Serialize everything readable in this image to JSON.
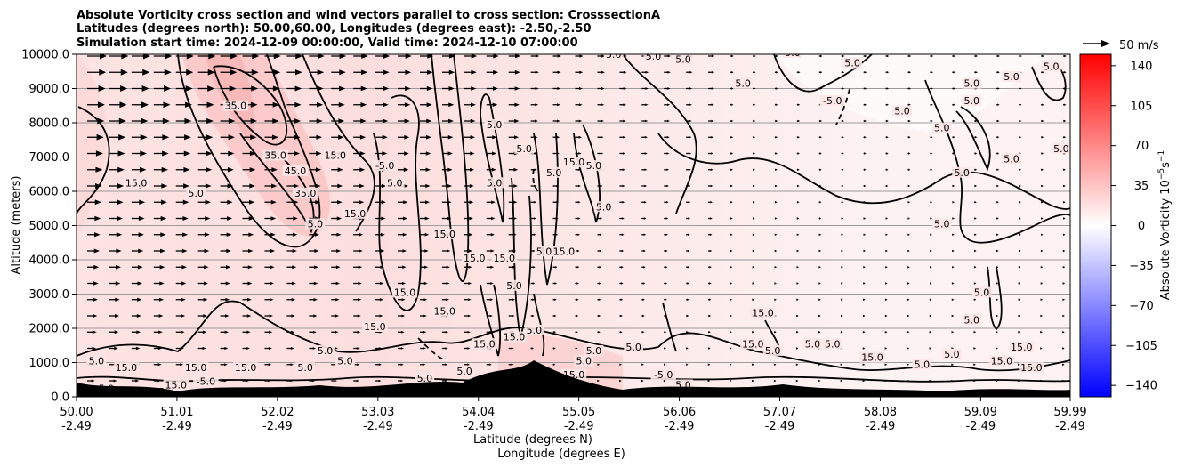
{
  "chart_data": {
    "type": "heatmap",
    "title_lines": [
      "Absolute Vorticity cross section and wind vectors parallel to cross section: CrosssectionA",
      "Latitudes (degrees north): 50.00,60.00, Longitudes (degrees east): -2.50,-2.50",
      "Simulation start time: 2024-12-09 00:00:00, Valid time: 2024-12-10 07:00:00"
    ],
    "ylabel": "Altitude (meters)",
    "xlabel_lat": "Latitude (degrees N)",
    "xlabel_lon": "Longitude (degrees E)",
    "ylim": [
      0,
      10000
    ],
    "y_ticks": [
      "0.0",
      "1000.0",
      "2000.0",
      "3000.0",
      "4000.0",
      "5000.0",
      "6000.0",
      "7000.0",
      "8000.0",
      "9000.0",
      "10000.0"
    ],
    "xlim": [
      50.0,
      59.99
    ],
    "x_ticks": [
      {
        "lat": "50.00",
        "lon": "-2.49"
      },
      {
        "lat": "51.01",
        "lon": "-2.49"
      },
      {
        "lat": "52.02",
        "lon": "-2.49"
      },
      {
        "lat": "53.03",
        "lon": "-2.49"
      },
      {
        "lat": "54.04",
        "lon": "-2.49"
      },
      {
        "lat": "55.05",
        "lon": "-2.49"
      },
      {
        "lat": "56.06",
        "lon": "-2.49"
      },
      {
        "lat": "57.07",
        "lon": "-2.49"
      },
      {
        "lat": "58.08",
        "lon": "-2.49"
      },
      {
        "lat": "59.09",
        "lon": "-2.49"
      },
      {
        "lat": "59.99",
        "lon": "-2.49"
      }
    ],
    "grid": "horizontal",
    "colorbar": {
      "label": "Absolute Vorticity 10$^{-5}$s$^{-1}$",
      "label_main": "Absolute Vorticity 10",
      "label_sup1": "−5",
      "label_mid": "s",
      "label_sup2": "−1",
      "range": [
        -150,
        150
      ],
      "ticks": [
        "140",
        "105",
        "70",
        "35",
        "0",
        "−35",
        "−70",
        "−105",
        "−140"
      ],
      "colormap": "bwr"
    },
    "quiver_key": "50 m/s",
    "contour_levels": [
      -5.0,
      5.0,
      15.0,
      35.0,
      45.0
    ],
    "contour_labels": [
      {
        "text": "5.0",
        "lat": 50.9,
        "alt": 100
      },
      {
        "text": "35.0",
        "lat": 51.6,
        "alt": 8450
      },
      {
        "text": "35.0",
        "lat": 52.0,
        "alt": 7000
      },
      {
        "text": "45.0",
        "lat": 52.2,
        "alt": 6550
      },
      {
        "text": "35.0",
        "lat": 52.3,
        "alt": 5900
      },
      {
        "text": "15.0",
        "lat": 50.6,
        "alt": 6200
      },
      {
        "text": "5.0",
        "lat": 51.2,
        "alt": 5900
      },
      {
        "text": "15.0",
        "lat": 52.6,
        "alt": 7000
      },
      {
        "text": "15.0",
        "lat": 52.8,
        "alt": 5300
      },
      {
        "text": "5.0",
        "lat": 52.4,
        "alt": 5000
      },
      {
        "text": "-5.0",
        "lat": 53.1,
        "alt": 6700
      },
      {
        "text": "5.0",
        "lat": 53.2,
        "alt": 6200
      },
      {
        "text": "5.0",
        "lat": 54.2,
        "alt": 6200
      },
      {
        "text": "5.0",
        "lat": 54.2,
        "alt": 7900
      },
      {
        "text": "15.0",
        "lat": 53.7,
        "alt": 4700
      },
      {
        "text": "15.0",
        "lat": 54.0,
        "alt": 4000
      },
      {
        "text": "15.0",
        "lat": 54.3,
        "alt": 4000
      },
      {
        "text": "5.0",
        "lat": 54.4,
        "alt": 3200
      },
      {
        "text": "15.0",
        "lat": 53.3,
        "alt": 3000
      },
      {
        "text": "15.0",
        "lat": 53.7,
        "alt": 2450
      },
      {
        "text": "15.0",
        "lat": 53.0,
        "alt": 2000
      },
      {
        "text": "5.0",
        "lat": 54.7,
        "alt": 4200
      },
      {
        "text": "15.0",
        "lat": 54.9,
        "alt": 4200
      },
      {
        "text": "5.0",
        "lat": 54.5,
        "alt": 7200
      },
      {
        "text": "5.0",
        "lat": 54.8,
        "alt": 6500
      },
      {
        "text": "15.0",
        "lat": 55.0,
        "alt": 6800
      },
      {
        "text": "5.0",
        "lat": 55.2,
        "alt": 6700
      },
      {
        "text": "5.0",
        "lat": 55.3,
        "alt": 5500
      },
      {
        "text": "5.0",
        "lat": 55.4,
        "alt": 9950
      },
      {
        "text": "5.0",
        "lat": 55.8,
        "alt": 9900
      },
      {
        "text": "5.0",
        "lat": 56.1,
        "alt": 9800
      },
      {
        "text": "5.0",
        "lat": 56.7,
        "alt": 9100
      },
      {
        "text": "5.0",
        "lat": 57.2,
        "alt": 10000
      },
      {
        "text": "5.0",
        "lat": 57.8,
        "alt": 9700
      },
      {
        "text": "-5.0",
        "lat": 57.6,
        "alt": 8600
      },
      {
        "text": "5.0",
        "lat": 58.3,
        "alt": 8300
      },
      {
        "text": "5.0",
        "lat": 58.7,
        "alt": 7800
      },
      {
        "text": "5.0",
        "lat": 58.9,
        "alt": 6500
      },
      {
        "text": "5.0",
        "lat": 59.0,
        "alt": 9100
      },
      {
        "text": "5.0",
        "lat": 59.0,
        "alt": 8600
      },
      {
        "text": "5.0",
        "lat": 59.4,
        "alt": 6900
      },
      {
        "text": "5.0",
        "lat": 59.4,
        "alt": 9300
      },
      {
        "text": "5.0",
        "lat": 59.8,
        "alt": 9600
      },
      {
        "text": "5.0",
        "lat": 59.9,
        "alt": 7200
      },
      {
        "text": "5.0",
        "lat": 58.7,
        "alt": 5000
      },
      {
        "text": "15.0",
        "lat": 56.9,
        "alt": 2400
      },
      {
        "text": "15.0",
        "lat": 56.8,
        "alt": 1500
      },
      {
        "text": "5.0",
        "lat": 57.0,
        "alt": 1300
      },
      {
        "text": "5.0",
        "lat": 57.4,
        "alt": 1500
      },
      {
        "text": "5.0",
        "lat": 57.6,
        "alt": 1500
      },
      {
        "text": "15.0",
        "lat": 58.0,
        "alt": 1100
      },
      {
        "text": "5.0",
        "lat": 58.5,
        "alt": 900
      },
      {
        "text": "5.0",
        "lat": 58.8,
        "alt": 1200
      },
      {
        "text": "5.0",
        "lat": 59.1,
        "alt": 3000
      },
      {
        "text": "5.0",
        "lat": 59.0,
        "alt": 2200
      },
      {
        "text": "15.0",
        "lat": 59.5,
        "alt": 1400
      },
      {
        "text": "15.0",
        "lat": 59.3,
        "alt": 1000
      },
      {
        "text": "15.0",
        "lat": 59.6,
        "alt": 800
      },
      {
        "text": "5.0",
        "lat": 55.6,
        "alt": 1400
      },
      {
        "text": "5.0",
        "lat": 55.2,
        "alt": 1300
      },
      {
        "text": "-5.0",
        "lat": 55.9,
        "alt": 600
      },
      {
        "text": "5.0",
        "lat": 56.1,
        "alt": 300
      },
      {
        "text": "15.0",
        "lat": 55.0,
        "alt": 600
      },
      {
        "text": "5.0",
        "lat": 55.1,
        "alt": 1000
      },
      {
        "text": "15.0",
        "lat": 54.4,
        "alt": 1700
      },
      {
        "text": "5.0",
        "lat": 54.6,
        "alt": 1900
      },
      {
        "text": "15.0",
        "lat": 54.1,
        "alt": 1500
      },
      {
        "text": "5.0",
        "lat": 53.9,
        "alt": 700
      },
      {
        "text": "-5.0",
        "lat": 51.3,
        "alt": 400
      },
      {
        "text": "15.0",
        "lat": 51.2,
        "alt": 800
      },
      {
        "text": "15.0",
        "lat": 51.0,
        "alt": 300
      },
      {
        "text": "15.0",
        "lat": 51.7,
        "alt": 800
      },
      {
        "text": "5.0",
        "lat": 52.3,
        "alt": 800
      },
      {
        "text": "5.0",
        "lat": 52.5,
        "alt": 1300
      },
      {
        "text": "5.0",
        "lat": 52.7,
        "alt": 1000
      },
      {
        "text": "5.0",
        "lat": 50.2,
        "alt": 1000
      },
      {
        "text": "15.0",
        "lat": 50.5,
        "alt": 800
      },
      {
        "text": "5.0",
        "lat": 50.3,
        "alt": 200
      },
      {
        "text": "5.0",
        "lat": 53.5,
        "alt": 500
      }
    ]
  }
}
